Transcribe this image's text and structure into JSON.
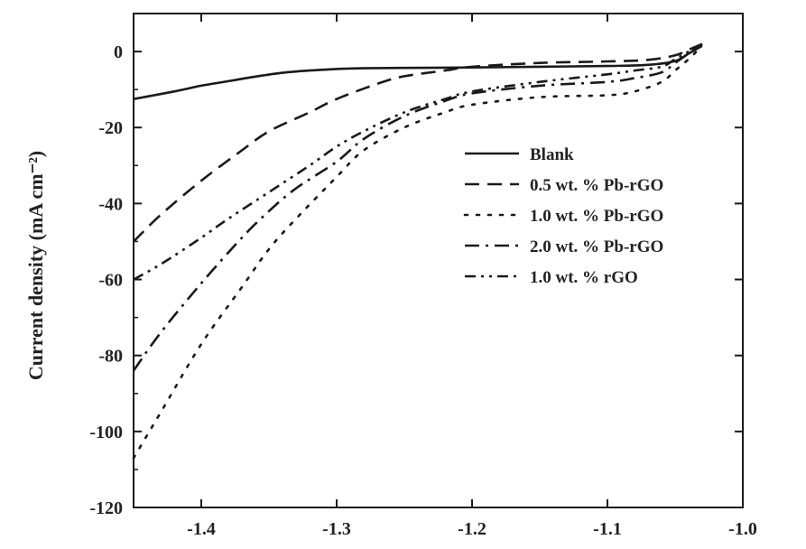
{
  "chart_data": {
    "type": "line",
    "xlabel": "",
    "ylabel": "Current density (mA cm⁻²)",
    "xlim": [
      -1.45,
      -1.0
    ],
    "ylim": [
      -120,
      10
    ],
    "xticks": [
      -1.4,
      -1.3,
      -1.2,
      -1.1,
      -1.0
    ],
    "yticks": [
      0,
      -20,
      -40,
      -60,
      -80,
      -100,
      -120
    ],
    "xtick_labels": [
      "-1.4",
      "-1.3",
      "-1.2",
      "-1.1",
      "-1.0"
    ],
    "ytick_labels": [
      "0",
      "-20",
      "-40",
      "-60",
      "-80",
      "-100",
      "-120"
    ],
    "grid": false,
    "legend_position": "right",
    "series": [
      {
        "name": "Blank",
        "dash": "solid",
        "x": [
          -1.45,
          -1.42,
          -1.4,
          -1.38,
          -1.36,
          -1.34,
          -1.32,
          -1.3,
          -1.28,
          -1.25,
          -1.2,
          -1.15,
          -1.1,
          -1.07,
          -1.05,
          -1.04,
          -1.03
        ],
        "y": [
          -12.5,
          -10.5,
          -9.0,
          -7.8,
          -6.6,
          -5.6,
          -5.0,
          -4.6,
          -4.4,
          -4.3,
          -4.2,
          -4.0,
          -3.8,
          -3.5,
          -2.5,
          -0.5,
          1.5
        ]
      },
      {
        "name": "0.5 wt. % Pb-rGO",
        "dash": "dash",
        "x": [
          -1.45,
          -1.43,
          -1.4,
          -1.37,
          -1.35,
          -1.32,
          -1.3,
          -1.27,
          -1.25,
          -1.22,
          -1.2,
          -1.15,
          -1.1,
          -1.07,
          -1.05,
          -1.04,
          -1.03
        ],
        "y": [
          -50,
          -43,
          -34,
          -26,
          -21,
          -16,
          -12.5,
          -8.5,
          -6.5,
          -5.0,
          -4.0,
          -3.0,
          -2.6,
          -2.2,
          -1.0,
          0.5,
          2.0
        ]
      },
      {
        "name": "1.0 wt. % Pb-rGO",
        "dash": "dot",
        "x": [
          -1.45,
          -1.43,
          -1.4,
          -1.37,
          -1.35,
          -1.33,
          -1.3,
          -1.28,
          -1.25,
          -1.22,
          -1.2,
          -1.15,
          -1.1,
          -1.08,
          -1.06,
          -1.05,
          -1.04,
          -1.03
        ],
        "y": [
          -107,
          -95,
          -77,
          -62,
          -52,
          -44,
          -33,
          -26,
          -20,
          -16,
          -14,
          -12,
          -11.5,
          -10.5,
          -8.0,
          -5.0,
          -2.0,
          1.5
        ]
      },
      {
        "name": "2.0 wt. % Pb-rGO",
        "dash": "dashdot",
        "x": [
          -1.45,
          -1.43,
          -1.4,
          -1.37,
          -1.35,
          -1.33,
          -1.3,
          -1.28,
          -1.25,
          -1.22,
          -1.2,
          -1.15,
          -1.1,
          -1.08,
          -1.06,
          -1.05,
          -1.04,
          -1.03
        ],
        "y": [
          -84,
          -74,
          -61,
          -49,
          -42,
          -36,
          -29,
          -23,
          -17,
          -13,
          -11,
          -9.0,
          -8.0,
          -7.0,
          -5.5,
          -3.0,
          -0.5,
          2.0
        ]
      },
      {
        "name": "1.0 wt. % rGO",
        "dash": "dashdotdot",
        "x": [
          -1.45,
          -1.43,
          -1.4,
          -1.38,
          -1.35,
          -1.32,
          -1.3,
          -1.28,
          -1.25,
          -1.22,
          -1.2,
          -1.15,
          -1.1,
          -1.08,
          -1.06,
          -1.05,
          -1.04,
          -1.03
        ],
        "y": [
          -60,
          -56,
          -49,
          -44,
          -37,
          -30,
          -25,
          -21,
          -16,
          -12.5,
          -10.5,
          -8.0,
          -6.0,
          -5.0,
          -4.0,
          -2.0,
          0.0,
          2.0
        ]
      }
    ]
  },
  "colors": {
    "line": "#1a1a1a",
    "axis": "#1a1a1a",
    "background": "#ffffff"
  }
}
